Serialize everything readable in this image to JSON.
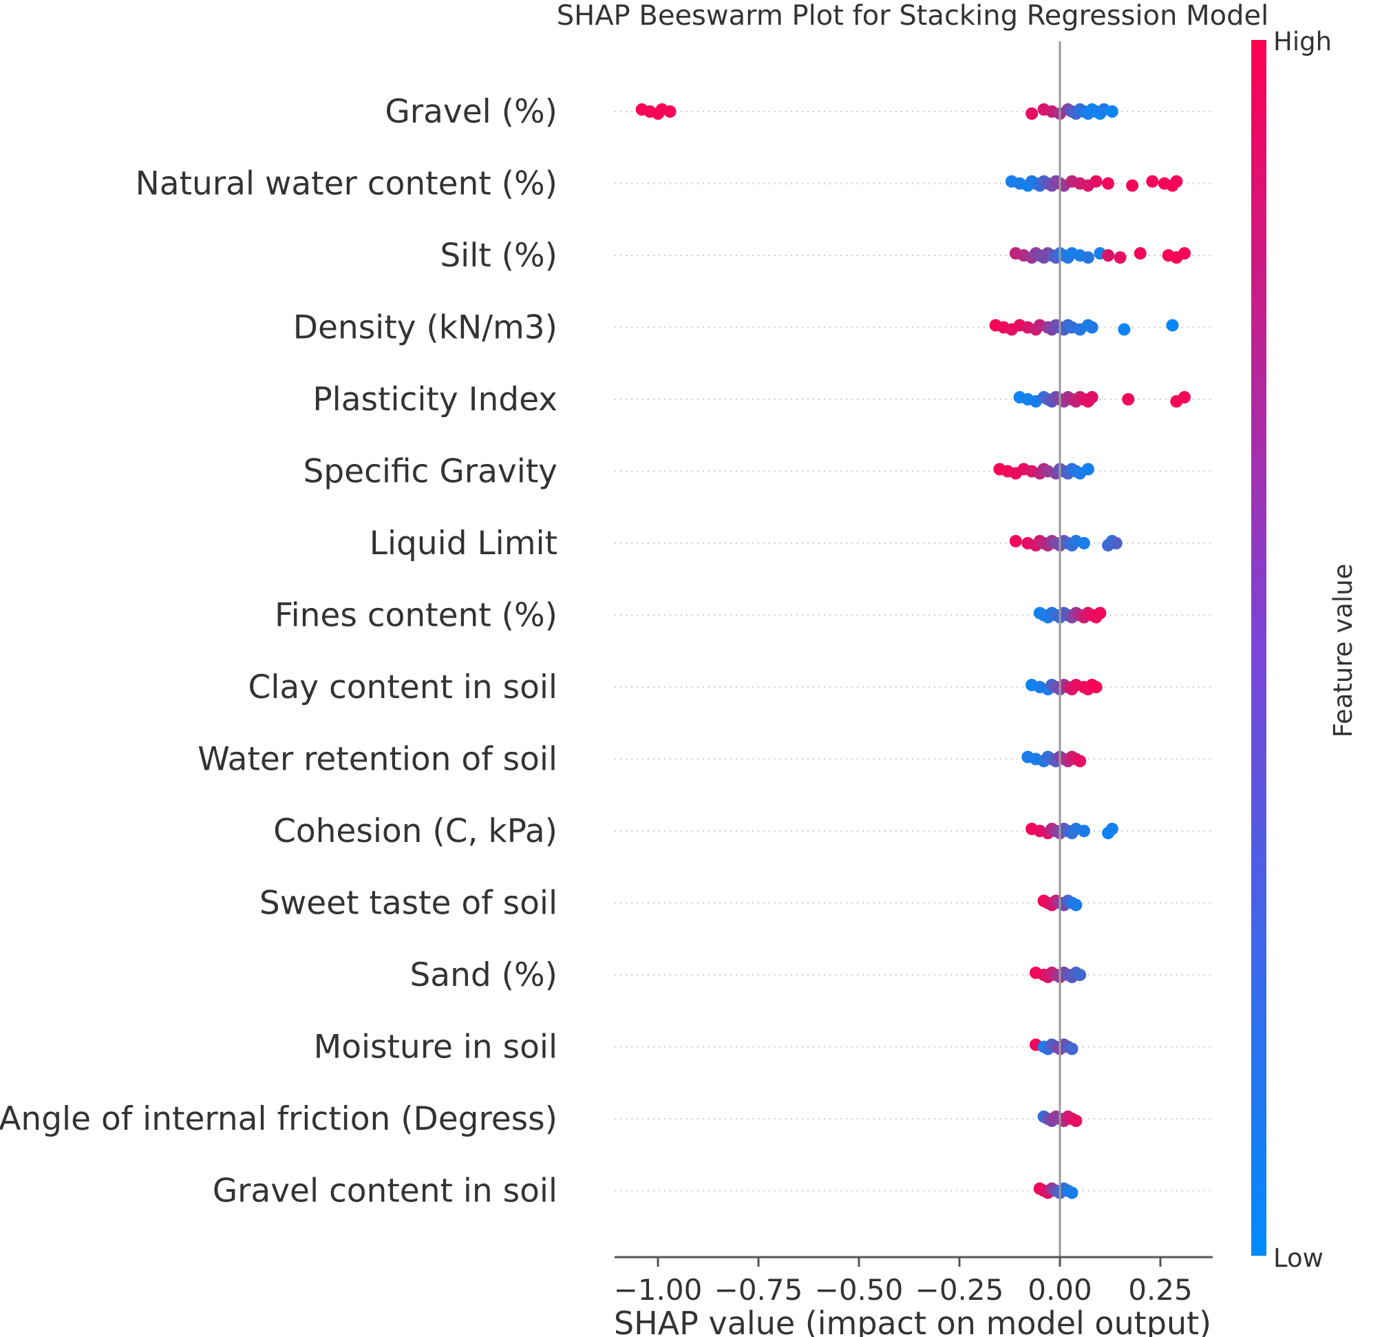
{
  "chart_data": {
    "type": "scatter",
    "subtype": "shap-beeswarm",
    "title": "SHAP Beeswarm Plot for Stacking Regression Model",
    "xlabel": "SHAP value (impact on model output)",
    "ylabel": "",
    "xlim": [
      -1.1,
      0.38
    ],
    "xticks": [
      -1.0,
      -0.75,
      -0.5,
      -0.25,
      0.0,
      0.25
    ],
    "xtick_labels": [
      "−1.00",
      "−0.75",
      "−0.50",
      "−0.25",
      "0.00",
      "0.25"
    ],
    "grid": false,
    "colorbar": {
      "label": "Feature value",
      "high_label": "High",
      "low_label": "Low",
      "high_color": "#ff0051",
      "low_color": "#008bfb"
    },
    "features": [
      {
        "name": "Gravel (%)",
        "points": [
          [
            -1.04,
            0.98
          ],
          [
            -1.02,
            0.97
          ],
          [
            -1.0,
            0.99
          ],
          [
            -0.99,
            0.96
          ],
          [
            -0.97,
            0.98
          ],
          [
            -0.07,
            0.9
          ],
          [
            -0.04,
            0.85
          ],
          [
            -0.02,
            0.78
          ],
          [
            0.0,
            0.65
          ],
          [
            0.02,
            0.5
          ],
          [
            0.03,
            0.35
          ],
          [
            0.04,
            0.25
          ],
          [
            0.05,
            0.2
          ],
          [
            0.06,
            0.15
          ],
          [
            0.07,
            0.1
          ],
          [
            0.08,
            0.05
          ],
          [
            0.09,
            0.1
          ],
          [
            0.1,
            0.05
          ],
          [
            0.11,
            0.1
          ],
          [
            0.13,
            0.05
          ]
        ]
      },
      {
        "name": "Natural water content (%)",
        "points": [
          [
            -0.12,
            0.1
          ],
          [
            -0.1,
            0.1
          ],
          [
            -0.08,
            0.05
          ],
          [
            -0.07,
            0.15
          ],
          [
            -0.06,
            0.1
          ],
          [
            -0.05,
            0.2
          ],
          [
            -0.04,
            0.3
          ],
          [
            -0.03,
            0.35
          ],
          [
            -0.02,
            0.45
          ],
          [
            -0.01,
            0.5
          ],
          [
            0.0,
            0.55
          ],
          [
            0.01,
            0.6
          ],
          [
            0.03,
            0.75
          ],
          [
            0.05,
            0.8
          ],
          [
            0.07,
            0.85
          ],
          [
            0.09,
            0.9
          ],
          [
            0.12,
            0.95
          ],
          [
            0.18,
            0.95
          ],
          [
            0.23,
            0.95
          ],
          [
            0.26,
            0.98
          ],
          [
            0.28,
            0.97
          ],
          [
            0.29,
            0.96
          ]
        ]
      },
      {
        "name": "Silt (%)",
        "points": [
          [
            -0.11,
            0.75
          ],
          [
            -0.09,
            0.7
          ],
          [
            -0.07,
            0.6
          ],
          [
            -0.06,
            0.55
          ],
          [
            -0.05,
            0.5
          ],
          [
            -0.04,
            0.45
          ],
          [
            -0.03,
            0.5
          ],
          [
            -0.02,
            0.4
          ],
          [
            -0.01,
            0.3
          ],
          [
            0.0,
            0.2
          ],
          [
            0.01,
            0.1
          ],
          [
            0.02,
            0.15
          ],
          [
            0.03,
            0.1
          ],
          [
            0.05,
            0.1
          ],
          [
            0.07,
            0.15
          ],
          [
            0.1,
            0.1
          ],
          [
            0.12,
            0.85
          ],
          [
            0.15,
            0.9
          ],
          [
            0.2,
            0.95
          ],
          [
            0.27,
            0.98
          ],
          [
            0.29,
            0.97
          ],
          [
            0.31,
            0.96
          ]
        ]
      },
      {
        "name": "Density (kN/m3)",
        "points": [
          [
            -0.16,
            0.97
          ],
          [
            -0.14,
            0.95
          ],
          [
            -0.12,
            0.9
          ],
          [
            -0.1,
            0.92
          ],
          [
            -0.08,
            0.85
          ],
          [
            -0.06,
            0.8
          ],
          [
            -0.05,
            0.75
          ],
          [
            -0.03,
            0.6
          ],
          [
            -0.02,
            0.5
          ],
          [
            -0.01,
            0.45
          ],
          [
            0.0,
            0.4
          ],
          [
            0.01,
            0.3
          ],
          [
            0.02,
            0.25
          ],
          [
            0.03,
            0.2
          ],
          [
            0.05,
            0.15
          ],
          [
            0.07,
            0.1
          ],
          [
            0.08,
            0.12
          ],
          [
            0.16,
            0.05
          ],
          [
            0.28,
            0.03
          ]
        ]
      },
      {
        "name": "Plasticity Index",
        "points": [
          [
            -0.1,
            0.05
          ],
          [
            -0.08,
            0.08
          ],
          [
            -0.06,
            0.1
          ],
          [
            -0.04,
            0.2
          ],
          [
            -0.03,
            0.3
          ],
          [
            -0.02,
            0.35
          ],
          [
            -0.01,
            0.45
          ],
          [
            0.0,
            0.5
          ],
          [
            0.01,
            0.6
          ],
          [
            0.02,
            0.65
          ],
          [
            0.03,
            0.7
          ],
          [
            0.04,
            0.75
          ],
          [
            0.05,
            0.8
          ],
          [
            0.06,
            0.85
          ],
          [
            0.07,
            0.9
          ],
          [
            0.08,
            0.88
          ],
          [
            0.17,
            0.95
          ],
          [
            0.29,
            0.97
          ],
          [
            0.31,
            0.96
          ]
        ]
      },
      {
        "name": "Specific Gravity",
        "points": [
          [
            -0.15,
            0.97
          ],
          [
            -0.13,
            0.95
          ],
          [
            -0.11,
            0.92
          ],
          [
            -0.09,
            0.9
          ],
          [
            -0.07,
            0.85
          ],
          [
            -0.05,
            0.75
          ],
          [
            -0.04,
            0.7
          ],
          [
            -0.03,
            0.6
          ],
          [
            -0.01,
            0.5
          ],
          [
            0.0,
            0.4
          ],
          [
            0.01,
            0.35
          ],
          [
            0.02,
            0.3
          ],
          [
            0.03,
            0.2
          ],
          [
            0.04,
            0.15
          ],
          [
            0.05,
            0.1
          ],
          [
            0.07,
            0.08
          ]
        ]
      },
      {
        "name": "Liquid Limit",
        "points": [
          [
            -0.11,
            0.95
          ],
          [
            -0.08,
            0.9
          ],
          [
            -0.06,
            0.85
          ],
          [
            -0.05,
            0.8
          ],
          [
            -0.04,
            0.75
          ],
          [
            -0.03,
            0.7
          ],
          [
            -0.02,
            0.6
          ],
          [
            -0.01,
            0.5
          ],
          [
            0.0,
            0.45
          ],
          [
            0.01,
            0.4
          ],
          [
            0.02,
            0.3
          ],
          [
            0.03,
            0.2
          ],
          [
            0.04,
            0.15
          ],
          [
            0.06,
            0.1
          ],
          [
            0.12,
            0.25
          ],
          [
            0.13,
            0.2
          ],
          [
            0.14,
            0.3
          ]
        ]
      },
      {
        "name": "Fines content (%)",
        "points": [
          [
            -0.05,
            0.05
          ],
          [
            -0.04,
            0.1
          ],
          [
            -0.03,
            0.1
          ],
          [
            -0.02,
            0.15
          ],
          [
            -0.01,
            0.2
          ],
          [
            0.0,
            0.25
          ],
          [
            0.01,
            0.3
          ],
          [
            0.02,
            0.35
          ],
          [
            0.03,
            0.5
          ],
          [
            0.04,
            0.6
          ],
          [
            0.05,
            0.7
          ],
          [
            0.06,
            0.8
          ],
          [
            0.07,
            0.85
          ],
          [
            0.08,
            0.9
          ],
          [
            0.09,
            0.92
          ],
          [
            0.1,
            0.95
          ]
        ]
      },
      {
        "name": "Clay content in soil",
        "points": [
          [
            -0.07,
            0.05
          ],
          [
            -0.05,
            0.1
          ],
          [
            -0.03,
            0.1
          ],
          [
            -0.02,
            0.3
          ],
          [
            -0.01,
            0.4
          ],
          [
            0.0,
            0.45
          ],
          [
            0.01,
            0.6
          ],
          [
            0.02,
            0.75
          ],
          [
            0.03,
            0.85
          ],
          [
            0.04,
            0.9
          ],
          [
            0.06,
            0.95
          ],
          [
            0.07,
            0.92
          ],
          [
            0.08,
            0.97
          ],
          [
            0.09,
            0.98
          ]
        ]
      },
      {
        "name": "Water retention of soil",
        "points": [
          [
            -0.08,
            0.1
          ],
          [
            -0.06,
            0.1
          ],
          [
            -0.04,
            0.15
          ],
          [
            -0.03,
            0.2
          ],
          [
            -0.02,
            0.25
          ],
          [
            -0.01,
            0.35
          ],
          [
            0.0,
            0.5
          ],
          [
            0.01,
            0.6
          ],
          [
            0.02,
            0.7
          ],
          [
            0.03,
            0.8
          ],
          [
            0.04,
            0.85
          ],
          [
            0.05,
            0.9
          ]
        ]
      },
      {
        "name": "Cohesion (C, kPa)",
        "points": [
          [
            -0.07,
            0.95
          ],
          [
            -0.05,
            0.9
          ],
          [
            -0.03,
            0.85
          ],
          [
            -0.02,
            0.7
          ],
          [
            -0.01,
            0.6
          ],
          [
            0.0,
            0.5
          ],
          [
            0.01,
            0.4
          ],
          [
            0.02,
            0.3
          ],
          [
            0.03,
            0.2
          ],
          [
            0.04,
            0.15
          ],
          [
            0.06,
            0.1
          ],
          [
            0.12,
            0.05
          ],
          [
            0.13,
            0.08
          ]
        ]
      },
      {
        "name": "Sweet taste of soil",
        "points": [
          [
            -0.04,
            0.95
          ],
          [
            -0.03,
            0.9
          ],
          [
            -0.02,
            0.85
          ],
          [
            -0.01,
            0.75
          ],
          [
            0.0,
            0.6
          ],
          [
            0.01,
            0.45
          ],
          [
            0.02,
            0.3
          ],
          [
            0.03,
            0.15
          ],
          [
            0.04,
            0.1
          ]
        ]
      },
      {
        "name": "Sand (%)",
        "points": [
          [
            -0.06,
            0.95
          ],
          [
            -0.04,
            0.9
          ],
          [
            -0.03,
            0.85
          ],
          [
            -0.02,
            0.8
          ],
          [
            -0.01,
            0.7
          ],
          [
            0.0,
            0.6
          ],
          [
            0.01,
            0.5
          ],
          [
            0.02,
            0.4
          ],
          [
            0.03,
            0.35
          ],
          [
            0.04,
            0.3
          ],
          [
            0.05,
            0.25
          ]
        ]
      },
      {
        "name": "Moisture in soil",
        "points": [
          [
            -0.06,
            0.95
          ],
          [
            -0.04,
            0.1
          ],
          [
            -0.03,
            0.2
          ],
          [
            -0.02,
            0.3
          ],
          [
            -0.01,
            0.4
          ],
          [
            0.0,
            0.5
          ],
          [
            0.01,
            0.45
          ],
          [
            0.02,
            0.35
          ],
          [
            0.03,
            0.25
          ]
        ]
      },
      {
        "name": "Angle of internal friction (Degress)",
        "points": [
          [
            -0.04,
            0.2
          ],
          [
            -0.03,
            0.4
          ],
          [
            -0.02,
            0.5
          ],
          [
            -0.01,
            0.6
          ],
          [
            0.0,
            0.5
          ],
          [
            0.01,
            0.7
          ],
          [
            0.02,
            0.8
          ],
          [
            0.03,
            0.85
          ],
          [
            0.04,
            0.9
          ]
        ]
      },
      {
        "name": "Gravel content in soil",
        "points": [
          [
            -0.05,
            0.95
          ],
          [
            -0.04,
            0.9
          ],
          [
            -0.03,
            0.85
          ],
          [
            -0.02,
            0.6
          ],
          [
            -0.01,
            0.4
          ],
          [
            0.0,
            0.3
          ],
          [
            0.01,
            0.2
          ],
          [
            0.02,
            0.15
          ],
          [
            0.03,
            0.1
          ]
        ]
      }
    ]
  }
}
